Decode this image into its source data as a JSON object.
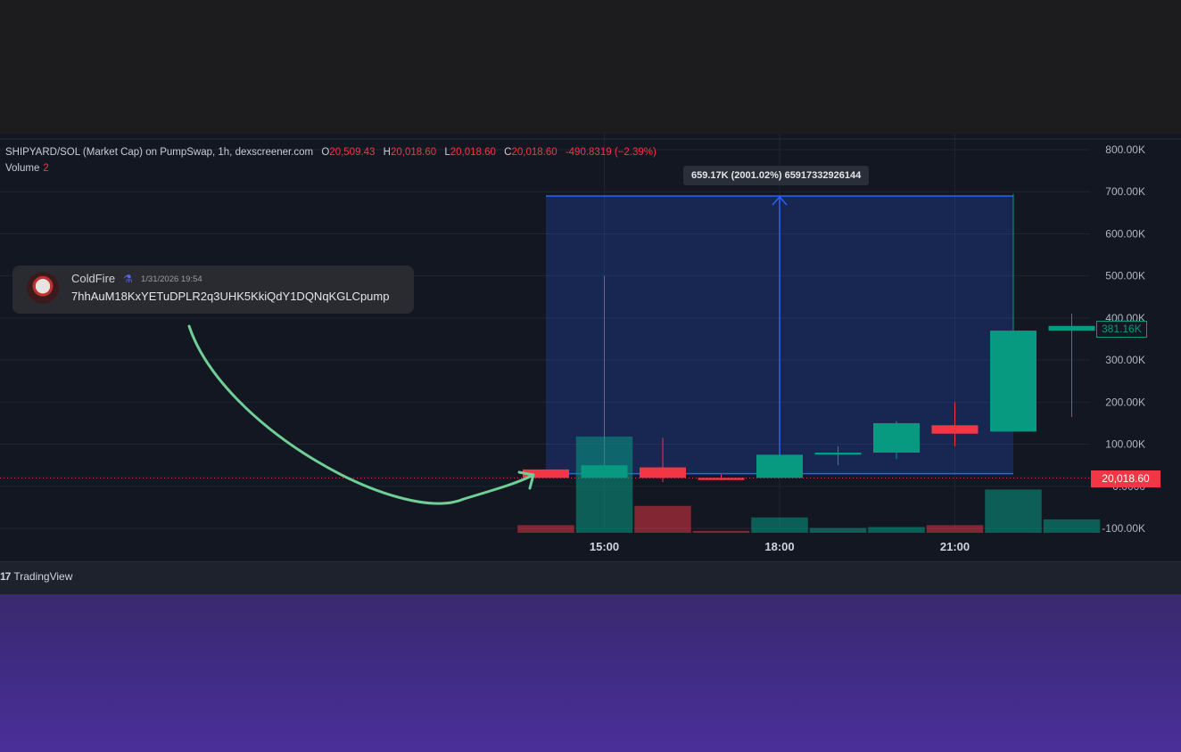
{
  "chart_data": {
    "type": "candlestick",
    "symbol_title": "SHIPYARD/SOL (Market Cap) on PumpSwap, 1h, dexscreener.com",
    "legend": {
      "o_label": "O",
      "o_value": "20,509.43",
      "h_label": "H",
      "h_value": "20,018.60",
      "l_label": "L",
      "l_value": "20,018.60",
      "c_label": "C",
      "c_value": "20,018.60",
      "change": "-490.8319 (−2.39%)",
      "volume_label": "Volume",
      "volume_value": "2"
    },
    "x_ticks": [
      "15:00",
      "18:00",
      "21:00"
    ],
    "y_ticks": [
      "800.00K",
      "700.00K",
      "600.00K",
      "500.00K",
      "400.00K",
      "300.00K",
      "200.00K",
      "100.00K",
      "0.0000",
      "-100.00K"
    ],
    "ylim": [
      -100000,
      800000
    ],
    "candles": [
      {
        "o": 40000,
        "h": 40000,
        "l": 20000,
        "c": 20000
      },
      {
        "o": 20000,
        "h": 500000,
        "l": 20000,
        "c": 50000
      },
      {
        "o": 45000,
        "h": 115000,
        "l": 10000,
        "c": 20000
      },
      {
        "o": 20000,
        "h": 28000,
        "l": 15000,
        "c": 15000
      },
      {
        "o": 20000,
        "h": 75000,
        "l": 20000,
        "c": 75000
      },
      {
        "o": 75000,
        "h": 95000,
        "l": 50000,
        "c": 80000
      },
      {
        "o": 80000,
        "h": 155000,
        "l": 65000,
        "c": 150000
      },
      {
        "o": 145000,
        "h": 200000,
        "l": 95000,
        "c": 125000
      },
      {
        "o": 130000,
        "h": 695000,
        "l": 130000,
        "c": 370000
      },
      {
        "o": 370000,
        "h": 410000,
        "l": 165000,
        "c": 381160
      }
    ],
    "volumes": [
      {
        "v": 0.08,
        "up": false
      },
      {
        "v": 1.0,
        "up": true
      },
      {
        "v": 0.28,
        "up": false
      },
      {
        "v": 0.02,
        "up": false
      },
      {
        "v": 0.16,
        "up": true
      },
      {
        "v": 0.05,
        "up": true
      },
      {
        "v": 0.06,
        "up": true
      },
      {
        "v": 0.08,
        "up": false
      },
      {
        "v": 0.45,
        "up": true
      },
      {
        "v": 0.14,
        "up": true
      }
    ],
    "measure": {
      "from_price": 30000,
      "to_price": 690000,
      "label": "659.17K (2001.02%) 65917332926144"
    },
    "current_price_tag": "381.16K",
    "last_price_tag": "20,018.60",
    "last_price": 20018.6,
    "colors": {
      "up": "#089981",
      "down": "#f23645",
      "measure": "#2962ff"
    }
  },
  "message": {
    "author": "ColdFire",
    "badge_icon": "wizard-badge-icon",
    "timestamp": "1/31/2026 19:54",
    "text": "7hhAuM18KxYETuDPLR2q3UHK5KkiQdY1DQNqKGLCpump"
  },
  "footer": {
    "brand": "TradingView",
    "logo_glyph": "17"
  }
}
